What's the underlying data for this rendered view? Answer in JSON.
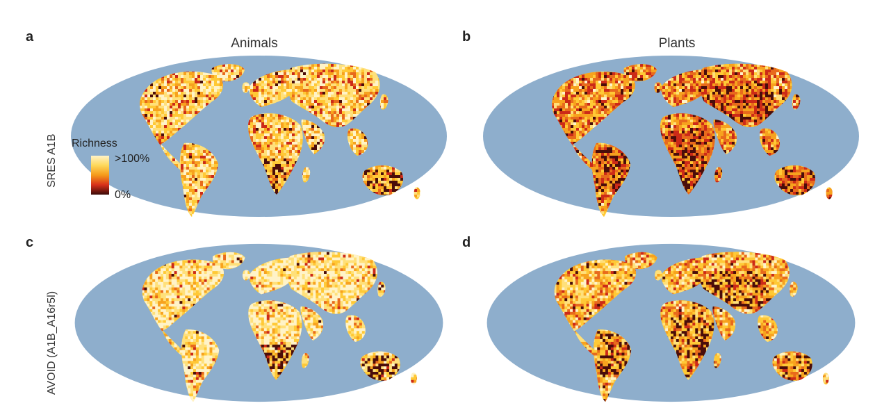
{
  "figure": {
    "columns": [
      "Animals",
      "Plants"
    ],
    "rows": [
      "SRES A1B",
      "AVOID (A1B_A16r5l)"
    ],
    "panels": [
      {
        "letter": "a",
        "column": "Animals",
        "row": "SRES A1B",
        "palette": [
          "#fff3c8",
          "#ffe07a",
          "#ffc936",
          "#f7a21e",
          "#e86a1c",
          "#cc2a18",
          "#4a0d0a"
        ],
        "weights": [
          0.22,
          0.26,
          0.22,
          0.13,
          0.08,
          0.06,
          0.03
        ],
        "hotspot": "south"
      },
      {
        "letter": "b",
        "column": "Plants",
        "row": "SRES A1B",
        "palette": [
          "#fff3c8",
          "#ffe07a",
          "#ffc936",
          "#f7a21e",
          "#e86a1c",
          "#cc2a18",
          "#4a0d0a"
        ],
        "weights": [
          0.03,
          0.1,
          0.18,
          0.22,
          0.22,
          0.2,
          0.05
        ],
        "hotspot": "tropics"
      },
      {
        "letter": "c",
        "column": "Animals",
        "row": "AVOID (A1B_A16r5l)",
        "palette": [
          "#fff3c8",
          "#ffe07a",
          "#ffc936",
          "#f7a21e",
          "#e86a1c",
          "#cc2a18",
          "#4a0d0a"
        ],
        "weights": [
          0.4,
          0.26,
          0.17,
          0.08,
          0.05,
          0.03,
          0.01
        ],
        "hotspot": "south"
      },
      {
        "letter": "d",
        "column": "Plants",
        "row": "AVOID (A1B_A16r5l)",
        "palette": [
          "#fff3c8",
          "#ffe07a",
          "#ffc936",
          "#f7a21e",
          "#e86a1c",
          "#cc2a18",
          "#4a0d0a"
        ],
        "weights": [
          0.12,
          0.22,
          0.24,
          0.18,
          0.12,
          0.09,
          0.03
        ],
        "hotspot": "tropics"
      }
    ],
    "ocean_color": "#8eaecc"
  },
  "legend": {
    "title": "Richness",
    "max_label": ">100%",
    "min_label": "0%"
  }
}
